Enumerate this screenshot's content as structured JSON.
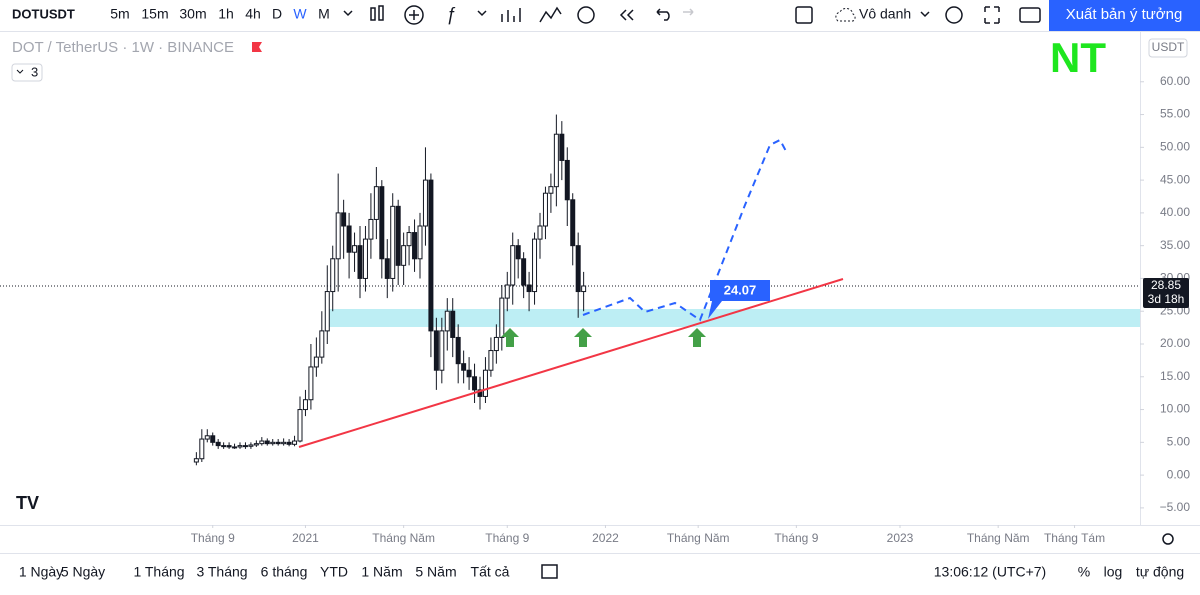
{
  "toolbar": {
    "symbol": "DOTUSDT",
    "intervals": [
      "5m",
      "15m",
      "30m",
      "1h",
      "4h",
      "D",
      "W",
      "M"
    ],
    "layout_name": "Vô danh",
    "publish": "Xuất bản ý tưởng"
  },
  "chart_data": {
    "type": "candlestick",
    "title": "DOT / TetherUS · 1W · BINANCE",
    "legend_toggle": 3,
    "currency": "USDT",
    "watermark": "NT",
    "x": [
      0,
      1,
      2,
      3,
      4,
      5,
      6,
      7,
      8,
      9,
      10,
      11,
      12,
      13,
      14,
      15,
      16,
      17,
      18,
      19,
      20,
      21,
      22,
      23,
      24,
      25,
      26,
      27,
      28,
      29,
      30,
      31,
      32,
      33,
      34,
      35,
      36,
      37,
      38,
      39,
      40,
      41,
      42,
      43,
      44,
      45,
      46,
      47,
      48,
      49,
      50,
      51,
      52,
      53,
      54,
      55,
      56,
      57,
      58,
      59,
      60,
      61,
      62,
      63,
      64,
      65,
      66,
      67,
      68,
      69,
      70,
      71
    ],
    "open": [
      2,
      2.5,
      5.5,
      6,
      5,
      4.5,
      4.5,
      4.3,
      4.3,
      4.5,
      4.4,
      4.6,
      4.8,
      5.2,
      4.8,
      5,
      4.8,
      5,
      4.7,
      5.2,
      10,
      11.5,
      16.5,
      18,
      22,
      28,
      33,
      40,
      38,
      34,
      35,
      30,
      36,
      39,
      44,
      33,
      30,
      41,
      32,
      35,
      37,
      33,
      38,
      45,
      22,
      16,
      22,
      25,
      21,
      17,
      16,
      15,
      13,
      12,
      16,
      19,
      21,
      27,
      29,
      35,
      33,
      29,
      28,
      36,
      38,
      43,
      44,
      52,
      48,
      42,
      35,
      28
    ],
    "high": [
      3.5,
      7,
      7,
      6.5,
      5.5,
      5,
      5,
      4.8,
      5,
      5,
      5,
      5.3,
      5.8,
      5.6,
      5.5,
      5.5,
      5.6,
      5.5,
      6,
      12,
      13,
      20,
      21,
      25,
      32,
      35,
      46,
      42,
      40,
      37,
      38,
      38,
      43,
      47,
      45,
      36,
      43,
      42,
      37,
      38,
      39,
      40,
      50,
      46,
      24,
      24,
      27,
      27,
      23,
      19,
      18,
      17,
      15,
      18,
      21,
      23,
      29,
      31,
      37,
      36,
      34,
      31,
      37,
      40,
      44,
      46,
      55,
      54,
      50,
      43,
      37,
      31
    ],
    "low": [
      1.5,
      2,
      5,
      4.5,
      4,
      4,
      4,
      4,
      4,
      4,
      4,
      4.3,
      4.5,
      4.5,
      4.5,
      4.5,
      4.5,
      4.4,
      4.4,
      5,
      9,
      10,
      15,
      17,
      20,
      25,
      28,
      33,
      30,
      31,
      27,
      28,
      33,
      36,
      30,
      27,
      28,
      29,
      29,
      32,
      31,
      30,
      35,
      18,
      13,
      14,
      19,
      18,
      14,
      14,
      13,
      11,
      10,
      11,
      15,
      17,
      19,
      25,
      26,
      30,
      27,
      25,
      26,
      33,
      36,
      40,
      41,
      45,
      38,
      32,
      24,
      25
    ],
    "close": [
      2.5,
      5.5,
      6,
      5,
      4.5,
      4.5,
      4.3,
      4.3,
      4.5,
      4.4,
      4.6,
      4.8,
      5.2,
      4.8,
      5,
      4.8,
      5,
      4.7,
      5.2,
      10,
      11.5,
      16.5,
      18,
      22,
      28,
      33,
      40,
      38,
      34,
      35,
      30,
      36,
      39,
      44,
      33,
      30,
      41,
      32,
      35,
      37,
      33,
      38,
      45,
      22,
      16,
      22,
      25,
      21,
      17,
      16,
      15,
      13,
      12,
      16,
      19,
      21,
      27,
      29,
      35,
      33,
      29,
      28,
      36,
      38,
      43,
      44,
      52,
      48,
      42,
      35,
      28,
      28.85
    ],
    "xlim": [
      -36,
      173
    ],
    "xticks": [
      {
        "value": 3,
        "label": "Tháng 9"
      },
      {
        "value": 20,
        "label": "2021"
      },
      {
        "value": 38,
        "label": "Tháng Năm"
      },
      {
        "value": 57,
        "label": "Tháng 9"
      },
      {
        "value": 75,
        "label": "2022"
      },
      {
        "value": 92,
        "label": "Tháng Năm"
      },
      {
        "value": 110,
        "label": "Tháng 9"
      },
      {
        "value": 129,
        "label": "2023"
      },
      {
        "value": 147,
        "label": "Tháng Năm"
      },
      {
        "value": 161,
        "label": "Tháng Tám"
      }
    ],
    "ylim": [
      -7,
      65
    ],
    "yticks": [
      {
        "value": -5,
        "label": "−5.00"
      },
      {
        "value": 0,
        "label": "0.00"
      },
      {
        "value": 5,
        "label": "5.00"
      },
      {
        "value": 10,
        "label": "10.00"
      },
      {
        "value": 15,
        "label": "15.00"
      },
      {
        "value": 20,
        "label": "20.00"
      },
      {
        "value": 25,
        "label": "25.00"
      },
      {
        "value": 30,
        "label": "30.00"
      },
      {
        "value": 35,
        "label": "35.00"
      },
      {
        "value": 40,
        "label": "40.00"
      },
      {
        "value": 45,
        "label": "45.00"
      },
      {
        "value": 50,
        "label": "50.00"
      },
      {
        "value": 55,
        "label": "55.00"
      },
      {
        "value": 60,
        "label": "60.00"
      }
    ],
    "countdown": "3d 18h",
    "annotation": "24.07"
  },
  "bottom_bar": {
    "ranges": [
      "1 Ngày",
      "5 Ngày",
      "1 Tháng",
      "3 Tháng",
      "6 tháng",
      "YTD",
      "1 Năm",
      "5 Năm",
      "Tất cả"
    ],
    "clock": "13:06:12 (UTC+7)",
    "percent": "%",
    "log": "log",
    "auto": "tự động"
  }
}
